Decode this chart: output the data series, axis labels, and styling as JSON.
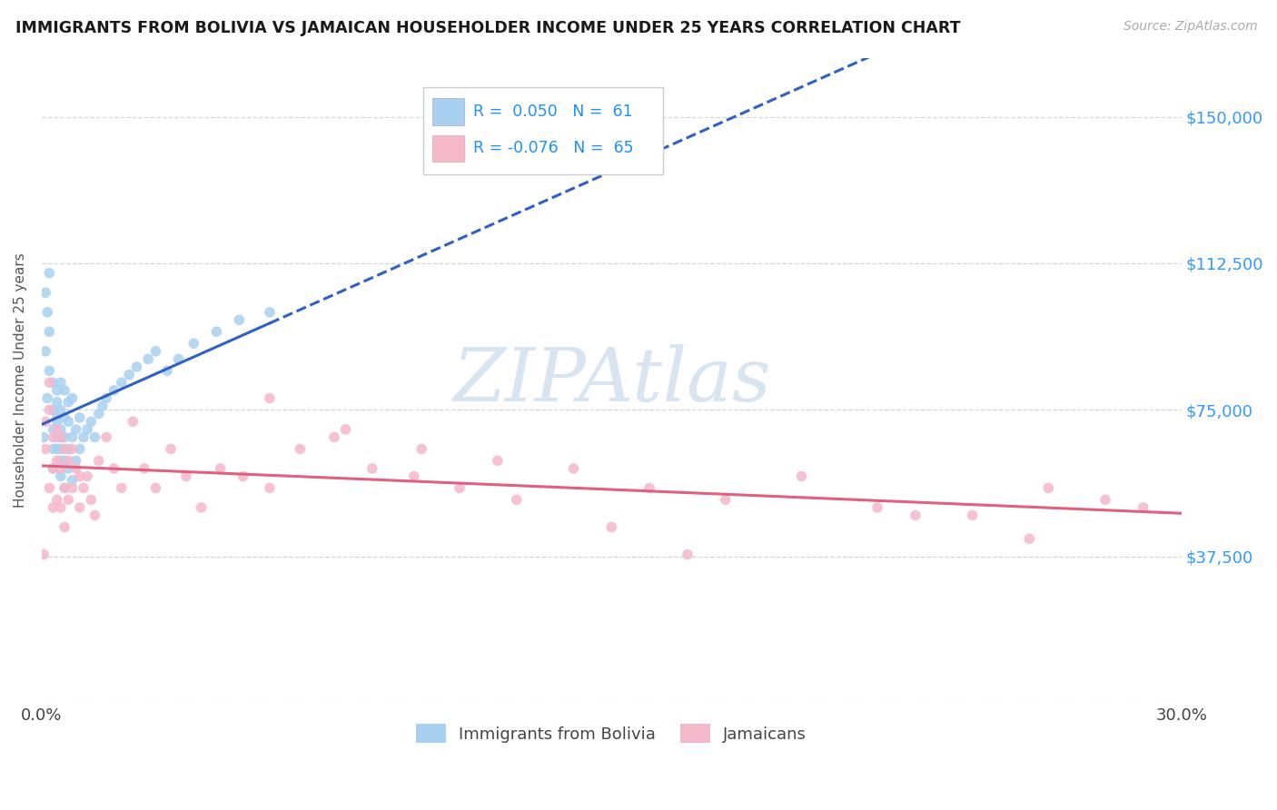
{
  "title": "IMMIGRANTS FROM BOLIVIA VS JAMAICAN HOUSEHOLDER INCOME UNDER 25 YEARS CORRELATION CHART",
  "source_text": "Source: ZipAtlas.com",
  "ylabel": "Householder Income Under 25 years",
  "xlim": [
    0.0,
    0.3
  ],
  "ylim": [
    0,
    165000
  ],
  "yticks": [
    0,
    37500,
    75000,
    112500,
    150000
  ],
  "ytick_labels": [
    "",
    "$37,500",
    "$75,000",
    "$112,500",
    "$150,000"
  ],
  "r_bolivia": 0.05,
  "n_bolivia": 61,
  "r_jamaican": -0.076,
  "n_jamaican": 65,
  "bolivia_color": "#a8d0f0",
  "jamaican_color": "#f5b8cb",
  "bolivia_line_color": "#3060c0",
  "jamaican_line_color": "#e06080",
  "grid_color": "#d0d8e0",
  "watermark_color": "#d8e4f0",
  "bolivia_scatter_x": [
    0.0005,
    0.001,
    0.001,
    0.0015,
    0.0015,
    0.002,
    0.002,
    0.002,
    0.003,
    0.003,
    0.003,
    0.003,
    0.003,
    0.004,
    0.004,
    0.004,
    0.004,
    0.004,
    0.004,
    0.005,
    0.005,
    0.005,
    0.005,
    0.005,
    0.005,
    0.005,
    0.006,
    0.006,
    0.006,
    0.006,
    0.006,
    0.007,
    0.007,
    0.007,
    0.007,
    0.008,
    0.008,
    0.008,
    0.009,
    0.009,
    0.01,
    0.01,
    0.011,
    0.012,
    0.013,
    0.014,
    0.015,
    0.016,
    0.017,
    0.019,
    0.021,
    0.023,
    0.025,
    0.028,
    0.03,
    0.033,
    0.036,
    0.04,
    0.046,
    0.052,
    0.06
  ],
  "bolivia_scatter_y": [
    68000,
    105000,
    90000,
    100000,
    78000,
    95000,
    110000,
    85000,
    82000,
    75000,
    70000,
    65000,
    60000,
    80000,
    73000,
    68000,
    77000,
    72000,
    65000,
    82000,
    75000,
    70000,
    65000,
    68000,
    62000,
    58000,
    80000,
    73000,
    68000,
    62000,
    55000,
    77000,
    72000,
    65000,
    60000,
    78000,
    68000,
    57000,
    70000,
    62000,
    73000,
    65000,
    68000,
    70000,
    72000,
    68000,
    74000,
    76000,
    78000,
    80000,
    82000,
    84000,
    86000,
    88000,
    90000,
    85000,
    88000,
    92000,
    95000,
    98000,
    100000
  ],
  "jamaican_scatter_x": [
    0.0005,
    0.001,
    0.001,
    0.002,
    0.002,
    0.002,
    0.003,
    0.003,
    0.003,
    0.004,
    0.004,
    0.004,
    0.005,
    0.005,
    0.005,
    0.006,
    0.006,
    0.006,
    0.007,
    0.007,
    0.008,
    0.008,
    0.009,
    0.01,
    0.01,
    0.011,
    0.012,
    0.013,
    0.014,
    0.015,
    0.017,
    0.019,
    0.021,
    0.024,
    0.027,
    0.03,
    0.034,
    0.038,
    0.042,
    0.047,
    0.053,
    0.06,
    0.068,
    0.077,
    0.087,
    0.098,
    0.11,
    0.125,
    0.14,
    0.16,
    0.18,
    0.2,
    0.22,
    0.245,
    0.265,
    0.28,
    0.29,
    0.06,
    0.08,
    0.1,
    0.12,
    0.15,
    0.17,
    0.23,
    0.26
  ],
  "jamaican_scatter_y": [
    38000,
    72000,
    65000,
    75000,
    82000,
    55000,
    68000,
    60000,
    50000,
    70000,
    62000,
    52000,
    68000,
    60000,
    50000,
    65000,
    55000,
    45000,
    62000,
    52000,
    65000,
    55000,
    60000,
    58000,
    50000,
    55000,
    58000,
    52000,
    48000,
    62000,
    68000,
    60000,
    55000,
    72000,
    60000,
    55000,
    65000,
    58000,
    50000,
    60000,
    58000,
    55000,
    65000,
    68000,
    60000,
    58000,
    55000,
    52000,
    60000,
    55000,
    52000,
    58000,
    50000,
    48000,
    55000,
    52000,
    50000,
    78000,
    70000,
    65000,
    62000,
    45000,
    38000,
    48000,
    42000
  ]
}
